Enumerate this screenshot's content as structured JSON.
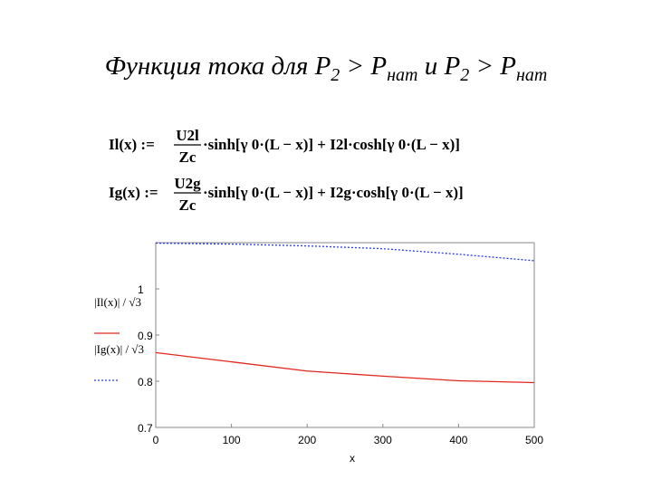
{
  "slide": {
    "title_parts": [
      "Функция тока для P",
      "2",
      " > P",
      "нат",
      " и P",
      "2",
      " > P",
      "нат"
    ],
    "formulas": [
      {
        "lhs": "Il(x) :=",
        "numerator": "U2l",
        "denominator": "Zc",
        "rhs": "·sinh[γ 0·(L − x)] + I2l·cosh[γ 0·(L − x)]"
      },
      {
        "lhs": "Ig(x) :=",
        "numerator": "U2g",
        "denominator": "Zc",
        "rhs": "·sinh[γ 0·(L − x)] + I2g·cosh[γ 0·(L − x)]"
      }
    ]
  },
  "chart_data": {
    "type": "line",
    "x_label": "x",
    "x": [
      0,
      100,
      200,
      300,
      400,
      500
    ],
    "series": [
      {
        "name": "|Il(x)| / √3",
        "color": "#e0281e",
        "dash": "solid",
        "values": [
          0.862,
          0.842,
          0.822,
          0.811,
          0.801,
          0.797
        ]
      },
      {
        "name": "|Ig(x)| / √3",
        "color": "#2a3bd6",
        "dash": "dotted",
        "values": [
          1.099,
          1.097,
          1.093,
          1.087,
          1.075,
          1.061
        ]
      }
    ],
    "xlim": [
      0,
      500
    ],
    "xticks": [
      0,
      100,
      200,
      300,
      400,
      500
    ],
    "ylim": [
      0.7,
      1.1
    ],
    "yticks": [
      0.7,
      0.8,
      0.9,
      1
    ],
    "grid": false
  }
}
